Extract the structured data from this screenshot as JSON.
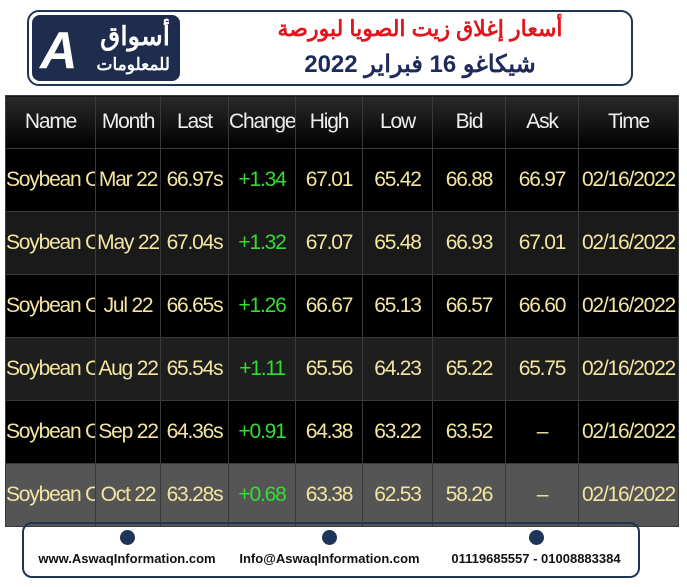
{
  "header": {
    "logo": {
      "name": "أسواق",
      "subtitle": "للمعلومات"
    },
    "title_line1": "أسعار إغلاق زيت الصويا لبورصة",
    "title_line2": "شيكاغو 16 فبراير 2022"
  },
  "table": {
    "columns": [
      "Name",
      "Month",
      "Last",
      "Change",
      "High",
      "Low",
      "Bid",
      "Ask",
      "Time"
    ],
    "rows": [
      [
        "Soybean Oil",
        "Mar 22",
        "66.97s",
        "+1.34",
        "67.01",
        "65.42",
        "66.88",
        "66.97",
        "02/16/2022"
      ],
      [
        "Soybean Oil",
        "May 22",
        "67.04s",
        "+1.32",
        "67.07",
        "65.48",
        "66.93",
        "67.01",
        "02/16/2022"
      ],
      [
        "Soybean Oil",
        "Jul 22",
        "66.65s",
        "+1.26",
        "66.67",
        "65.13",
        "66.57",
        "66.60",
        "02/16/2022"
      ],
      [
        "Soybean Oil",
        "Aug 22",
        "65.54s",
        "+1.11",
        "65.56",
        "64.23",
        "65.22",
        "65.75",
        "02/16/2022"
      ],
      [
        "Soybean Oil",
        "Sep 22",
        "64.36s",
        "+0.91",
        "64.38",
        "63.22",
        "63.52",
        "–",
        "02/16/2022"
      ],
      [
        "Soybean Oil",
        "Oct 22",
        "63.28s",
        "+0.68",
        "63.38",
        "62.53",
        "58.26",
        "–",
        "02/16/2022"
      ]
    ]
  },
  "footer": {
    "website": "www.AswaqInformation.com",
    "email": "Info@AswaqInformation.com",
    "phones": "01119685557 - 01008883384"
  }
}
